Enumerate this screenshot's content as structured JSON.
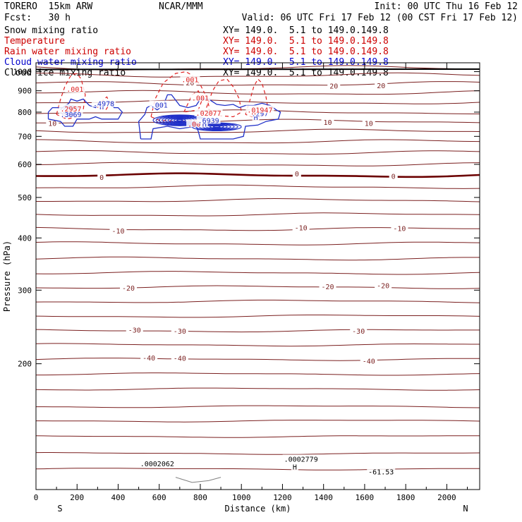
{
  "header": {
    "model": "TORERO  15km ARW",
    "center": "NCAR/MMM",
    "init": "Init: 00 UTC Thu 16 Feb 12",
    "fcst": "Fcst:   30 h",
    "valid": "Valid: 06 UTC Fri 17 Feb 12 (00 CST Fri 17 Feb 12)"
  },
  "fields": [
    {
      "name": "Snow mixing ratio",
      "xy": "XY= 149.0.  5.1 to 149.0.149.8",
      "color": "#000000"
    },
    {
      "name": "Temperature",
      "xy": "XY= 149.0.  5.1 to 149.0.149.8",
      "color": "#cc0000"
    },
    {
      "name": "Rain water mixing ratio",
      "xy": "XY= 149.0.  5.1 to 149.0.149.8",
      "color": "#cc0000"
    },
    {
      "name": "Cloud water mixing ratio",
      "xy": "XY= 149.0.  5.1 to 149.0.149.8",
      "color": "#0000cc"
    },
    {
      "name": "Cloud ice mixing ratio",
      "xy": "XY= 149.0.  5.1 to 149.0.149.8",
      "color": "#000000"
    }
  ],
  "chart_data": {
    "type": "cross-section",
    "xlabel": "Distance (km)",
    "ylabel": "Pressure (hPa)",
    "xlim": [
      0,
      2160
    ],
    "ylim": [
      1050,
      100
    ],
    "y_scale": "log",
    "x_ticks": [
      0,
      200,
      400,
      600,
      800,
      1000,
      1200,
      1400,
      1600,
      1800,
      2000
    ],
    "y_ticks": [
      200,
      300,
      400,
      500,
      600,
      700,
      800,
      900,
      1000
    ],
    "x_end_labels": {
      "left": "S",
      "right": "N"
    },
    "colors": {
      "temperature": "#7a1f1f",
      "zero_isotherm": "#6b0000",
      "rain": "#e02020",
      "cloud_water": "#1f2fc8"
    },
    "temperature_contours": {
      "interval": 5,
      "labels": [
        {
          "value": "-40",
          "x": [
            550,
            700,
            1620
          ]
        },
        {
          "value": "-30",
          "x": [
            480,
            700,
            1570
          ]
        },
        {
          "value": "-20",
          "x": [
            450,
            1420,
            1690
          ]
        },
        {
          "value": "-10",
          "x": [
            400,
            1290,
            1770
          ]
        },
        {
          "value": "0",
          "x": [
            320,
            1270,
            1740
          ]
        },
        {
          "value": "10",
          "x": [
            80,
            1420,
            1620
          ]
        },
        {
          "value": "20",
          "x": [
            750,
            1450,
            1680
          ]
        }
      ]
    },
    "labels": [
      {
        "text": ".0002062",
        "x": 590,
        "p": 115,
        "color": "#000000"
      },
      {
        "text": "H",
        "x": 1260,
        "p": 113,
        "color": "#000000"
      },
      {
        "text": ".0002779",
        "x": 1290,
        "p": 118,
        "color": "#000000"
      },
      {
        "text": "-61.53",
        "x": 1680,
        "p": 110,
        "color": "#000000"
      },
      {
        "text": ".001",
        "x": 780,
        "p": 748,
        "color": "#e02020"
      },
      {
        "text": "H",
        "x": 820,
        "p": 748,
        "color": "#1f2fc8"
      },
      {
        "text": ".6939",
        "x": 840,
        "p": 762,
        "color": "#1f2fc8"
      },
      {
        "text": ".02077",
        "x": 840,
        "p": 794,
        "color": "#e02020"
      },
      {
        "text": ".001",
        "x": 800,
        "p": 863,
        "color": "#e02020"
      },
      {
        "text": ".001",
        "x": 600,
        "p": 830,
        "color": "#1f2fc8"
      },
      {
        "text": "H",
        "x": 1070,
        "p": 776,
        "color": "#1f2fc8"
      },
      {
        "text": ".297",
        "x": 1090,
        "p": 792,
        "color": "#1f2fc8"
      },
      {
        "text": "H",
        "x": 1060,
        "p": 798,
        "color": "#e02020"
      },
      {
        "text": ".01947",
        "x": 1090,
        "p": 808,
        "color": "#e02020"
      },
      {
        "text": ".001",
        "x": 750,
        "p": 955,
        "color": "#e02020"
      },
      {
        "text": ".3069",
        "x": 170,
        "p": 788,
        "color": "#1f2fc8"
      },
      {
        "text": ".2957",
        "x": 170,
        "p": 813,
        "color": "#e02020"
      },
      {
        "text": "H",
        "x": 320,
        "p": 822,
        "color": "#1f2fc8"
      },
      {
        "text": ".4978",
        "x": 330,
        "p": 836,
        "color": "#1f2fc8"
      },
      {
        "text": ".001",
        "x": 190,
        "p": 905,
        "color": "#e02020"
      }
    ]
  }
}
